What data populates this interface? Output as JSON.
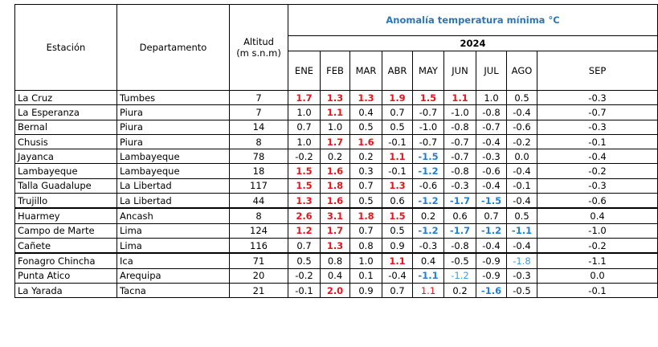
{
  "header": {
    "station": "Estación",
    "department": "Departamento",
    "altitude": [
      "Altitud",
      "(m s.n.m)"
    ],
    "title": "Anomalía temperatura mínima °C",
    "year": "2024",
    "months": [
      "ENE",
      "FEB",
      "MAR",
      "ABR",
      "MAY",
      "JUN",
      "JUL",
      "AGO",
      "SEP"
    ]
  },
  "table": {
    "rows": [
      {
        "station": "La Cruz",
        "department": "Tumbes",
        "altitude": "7",
        "values": [
          "1.7",
          "1.3",
          "1.3",
          "1.9",
          "1.5",
          "1.1",
          "1.0",
          "0.5",
          "-0.3"
        ],
        "highlight": {
          "0": "red",
          "1": "red",
          "2": "red",
          "3": "red",
          "4": "red",
          "5": "red"
        }
      },
      {
        "station": "La Esperanza",
        "department": "Piura",
        "altitude": "7",
        "values": [
          "1.0",
          "1.1",
          "0.4",
          "0.7",
          "-0.7",
          "-1.0",
          "-0.8",
          "-0.4",
          "-0.7"
        ],
        "highlight": {
          "1": "red"
        }
      },
      {
        "station": "Bernal",
        "department": "Piura",
        "altitude": "14",
        "values": [
          "0.7",
          "1.0",
          "0.5",
          "0.5",
          "-1.0",
          "-0.8",
          "-0.7",
          "-0.6",
          "-0.3"
        ],
        "highlight": {}
      },
      {
        "station": "Chusis",
        "department": "Piura",
        "altitude": "8",
        "values": [
          "1.0",
          "1.7",
          "1.6",
          "-0.1",
          "-0.7",
          "-0.7",
          "-0.4",
          "-0.2",
          "-0.1"
        ],
        "highlight": {
          "1": "red",
          "2": "red"
        }
      },
      {
        "station": "Jayanca",
        "department": "Lambayeque",
        "altitude": "78",
        "values": [
          "-0.2",
          "0.2",
          "0.2",
          "1.1",
          "-1.5",
          "-0.7",
          "-0.3",
          "0.0",
          "-0.4"
        ],
        "highlight": {
          "3": "red",
          "4": "blue"
        }
      },
      {
        "station": "Lambayeque",
        "department": "Lambayeque",
        "altitude": "18",
        "values": [
          "1.5",
          "1.6",
          "0.3",
          "-0.1",
          "-1.2",
          "-0.8",
          "-0.6",
          "-0.4",
          "-0.2"
        ],
        "highlight": {
          "0": "red",
          "1": "red",
          "4": "blue"
        }
      },
      {
        "station": "Talla Guadalupe",
        "department": "La Libertad",
        "altitude": "117",
        "values": [
          "1.5",
          "1.8",
          "0.7",
          "1.3",
          "-0.6",
          "-0.3",
          "-0.4",
          "-0.1",
          "-0.3"
        ],
        "highlight": {
          "0": "red",
          "1": "red",
          "3": "red"
        }
      },
      {
        "station": "Trujillo",
        "department": "La Libertad",
        "altitude": "44",
        "values": [
          "1.3",
          "1.6",
          "0.5",
          "0.6",
          "-1.2",
          "-1.7",
          "-1.5",
          "-0.4",
          "-0.6"
        ],
        "highlight": {
          "0": "red",
          "1": "red",
          "4": "blue",
          "5": "blue",
          "6": "blue"
        }
      },
      {
        "station": "Huarmey",
        "department": "Ancash",
        "altitude": "8",
        "values": [
          "2.6",
          "3.1",
          "1.8",
          "1.5",
          "0.2",
          "0.6",
          "0.7",
          "0.5",
          "0.4"
        ],
        "highlight": {
          "0": "red",
          "1": "red",
          "2": "red",
          "3": "red"
        }
      },
      {
        "station": "Campo de Marte",
        "department": "Lima",
        "altitude": "124",
        "values": [
          "1.2",
          "1.7",
          "0.7",
          "0.5",
          "-1.2",
          "-1.7",
          "-1.2",
          "-1.1",
          "-1.0"
        ],
        "highlight": {
          "0": "red",
          "1": "red",
          "4": "blue",
          "5": "blue",
          "6": "blue",
          "7": "blue"
        }
      },
      {
        "station": "Cañete",
        "department": "Lima",
        "altitude": "116",
        "values": [
          "0.7",
          "1.3",
          "0.8",
          "0.9",
          "-0.3",
          "-0.8",
          "-0.4",
          "-0.4",
          "-0.2"
        ],
        "highlight": {
          "1": "red"
        }
      },
      {
        "station": "Fonagro Chincha",
        "department": "Ica",
        "altitude": "71",
        "values": [
          "0.5",
          "0.8",
          "1.0",
          "1.1",
          "0.4",
          "-0.5",
          "-0.9",
          "-1.8",
          "-1.1"
        ],
        "highlight": {
          "3": "red",
          "7": "light-blue"
        }
      },
      {
        "station": "Punta Atico",
        "department": "Arequipa",
        "altitude": "20",
        "values": [
          "-0.2",
          "0.4",
          "0.1",
          "-0.4",
          "-1.1",
          "-1.2",
          "-0.9",
          "-0.3",
          "0.0"
        ],
        "highlight": {
          "4": "blue",
          "5": "light-blue"
        }
      },
      {
        "station": "La Yarada",
        "department": "Tacna",
        "altitude": "21",
        "values": [
          "-0.1",
          "2.0",
          "0.9",
          "0.7",
          "1.1",
          "0.2",
          "-1.6",
          "-0.5",
          "-0.1"
        ],
        "highlight": {
          "1": "red",
          "4": "light-red",
          "6": "blue"
        }
      }
    ],
    "groups_end": [
      7,
      10
    ]
  }
}
